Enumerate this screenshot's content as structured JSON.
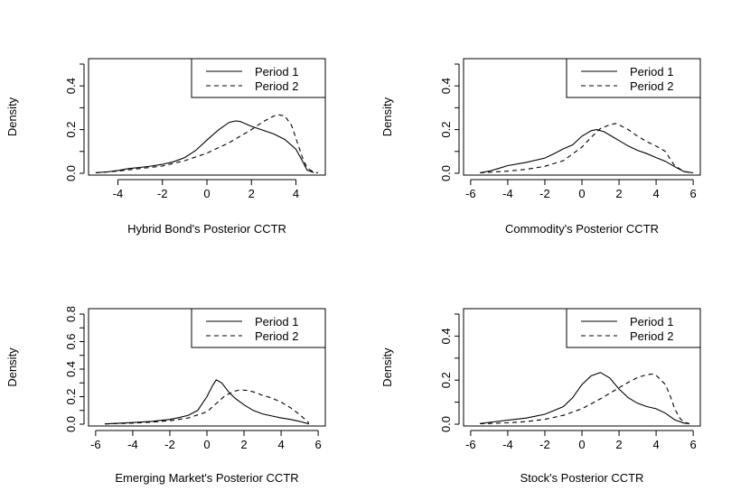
{
  "chart_data": [
    {
      "type": "line",
      "title": "",
      "xlabel": "Hybrid Bond's Posterior CCTR",
      "ylabel": "Density",
      "xlim": [
        -5,
        5
      ],
      "ylim": [
        0,
        0.5
      ],
      "xticks": [
        -4,
        -2,
        0,
        2,
        4
      ],
      "yticks": [
        0.0,
        0.2,
        0.4
      ],
      "ytick_labels": [
        "0.0",
        "0.2",
        "0.4"
      ],
      "legend": "top-right",
      "series": [
        {
          "name": "Period 1",
          "style": "solid",
          "x": [
            -5.0,
            -4.5,
            -4.0,
            -3.5,
            -3.0,
            -2.5,
            -2.0,
            -1.5,
            -1.0,
            -0.5,
            0.0,
            0.5,
            1.0,
            1.3,
            1.5,
            2.0,
            2.5,
            3.0,
            3.5,
            4.0,
            4.3,
            4.5,
            4.8
          ],
          "y": [
            0.003,
            0.006,
            0.013,
            0.022,
            0.027,
            0.033,
            0.041,
            0.053,
            0.072,
            0.105,
            0.152,
            0.197,
            0.233,
            0.24,
            0.237,
            0.215,
            0.198,
            0.18,
            0.155,
            0.11,
            0.055,
            0.015,
            0.003
          ]
        },
        {
          "name": "Period 2",
          "style": "dashed",
          "x": [
            -5.0,
            -4.0,
            -3.0,
            -2.0,
            -1.0,
            0.0,
            1.0,
            2.0,
            2.5,
            3.0,
            3.2,
            3.5,
            3.8,
            4.0,
            4.3,
            4.5,
            4.8,
            5.0
          ],
          "y": [
            0.002,
            0.01,
            0.022,
            0.033,
            0.058,
            0.092,
            0.14,
            0.2,
            0.235,
            0.262,
            0.268,
            0.262,
            0.22,
            0.16,
            0.07,
            0.025,
            0.005,
            0.002
          ]
        }
      ]
    },
    {
      "type": "line",
      "title": "",
      "xlabel": "Commodity's Posterior CCTR",
      "ylabel": "Density",
      "xlim": [
        -6,
        6
      ],
      "ylim": [
        0,
        0.5
      ],
      "xticks": [
        -6,
        -4,
        -2,
        0,
        2,
        4,
        6
      ],
      "yticks": [
        0.0,
        0.2,
        0.4
      ],
      "ytick_labels": [
        "0.0",
        "0.2",
        "0.4"
      ],
      "legend": "top-right",
      "series": [
        {
          "name": "Period 1",
          "style": "solid",
          "x": [
            -5.5,
            -5.0,
            -4.5,
            -4.0,
            -3.0,
            -2.0,
            -1.5,
            -1.0,
            -0.5,
            0.0,
            0.5,
            0.8,
            1.2,
            1.6,
            2.0,
            2.5,
            3.0,
            3.5,
            4.0,
            4.5,
            5.0,
            5.5,
            6.0
          ],
          "y": [
            0.002,
            0.01,
            0.022,
            0.035,
            0.05,
            0.07,
            0.09,
            0.112,
            0.13,
            0.17,
            0.195,
            0.2,
            0.19,
            0.17,
            0.15,
            0.125,
            0.105,
            0.09,
            0.072,
            0.055,
            0.03,
            0.008,
            0.002
          ]
        },
        {
          "name": "Period 2",
          "style": "dashed",
          "x": [
            -5.5,
            -4.0,
            -3.0,
            -2.0,
            -1.0,
            0.0,
            0.5,
            1.0,
            1.5,
            1.8,
            2.0,
            2.5,
            3.0,
            3.5,
            4.0,
            4.5,
            4.8,
            5.0,
            5.5,
            6.0
          ],
          "y": [
            0.002,
            0.01,
            0.018,
            0.032,
            0.058,
            0.12,
            0.165,
            0.205,
            0.222,
            0.228,
            0.222,
            0.2,
            0.17,
            0.145,
            0.125,
            0.1,
            0.06,
            0.035,
            0.008,
            0.002
          ]
        }
      ]
    },
    {
      "type": "line",
      "title": "",
      "xlabel": "Emerging Market's Posterior CCTR",
      "ylabel": "Density",
      "xlim": [
        -6,
        6
      ],
      "ylim": [
        0,
        0.8
      ],
      "xticks": [
        -6,
        -4,
        -2,
        0,
        2,
        4,
        6
      ],
      "yticks": [
        0.0,
        0.2,
        0.4,
        0.6,
        0.8
      ],
      "ytick_labels": [
        "0.0",
        "0.2",
        "0.4",
        "0.6",
        "0.8"
      ],
      "legend": "top-right",
      "series": [
        {
          "name": "Period 1",
          "style": "solid",
          "x": [
            -5.5,
            -5.0,
            -4.0,
            -3.0,
            -2.0,
            -1.5,
            -1.0,
            -0.5,
            0.0,
            0.3,
            0.5,
            0.8,
            1.2,
            1.5,
            2.0,
            2.5,
            3.0,
            3.5,
            4.0,
            4.5,
            5.0,
            5.5
          ],
          "y": [
            0.002,
            0.005,
            0.012,
            0.02,
            0.035,
            0.048,
            0.065,
            0.1,
            0.2,
            0.28,
            0.322,
            0.3,
            0.23,
            0.19,
            0.14,
            0.1,
            0.075,
            0.06,
            0.045,
            0.035,
            0.02,
            0.002
          ]
        },
        {
          "name": "Period 2",
          "style": "dashed",
          "x": [
            -5.5,
            -4.0,
            -3.0,
            -2.0,
            -1.0,
            0.0,
            0.5,
            1.0,
            1.5,
            1.8,
            2.2,
            2.5,
            3.0,
            3.5,
            4.0,
            4.5,
            5.0,
            5.5
          ],
          "y": [
            0.002,
            0.008,
            0.015,
            0.025,
            0.045,
            0.09,
            0.15,
            0.21,
            0.24,
            0.25,
            0.245,
            0.235,
            0.21,
            0.19,
            0.16,
            0.12,
            0.07,
            0.01
          ]
        }
      ]
    },
    {
      "type": "line",
      "title": "",
      "xlabel": "Stock's Posterior CCTR",
      "ylabel": "Density",
      "xlim": [
        -6,
        6
      ],
      "ylim": [
        0,
        0.5
      ],
      "xticks": [
        -6,
        -4,
        -2,
        0,
        2,
        4,
        6
      ],
      "yticks": [
        0.0,
        0.2,
        0.4
      ],
      "ytick_labels": [
        "0.0",
        "0.2",
        "0.4"
      ],
      "legend": "top-right",
      "series": [
        {
          "name": "Period 1",
          "style": "solid",
          "x": [
            -5.5,
            -5.0,
            -4.0,
            -3.0,
            -2.0,
            -1.0,
            -0.5,
            0.0,
            0.5,
            1.0,
            1.5,
            2.0,
            2.5,
            3.0,
            3.5,
            4.0,
            4.5,
            5.0,
            5.5,
            5.8
          ],
          "y": [
            0.003,
            0.008,
            0.018,
            0.028,
            0.045,
            0.08,
            0.12,
            0.18,
            0.22,
            0.235,
            0.21,
            0.16,
            0.12,
            0.095,
            0.08,
            0.07,
            0.05,
            0.02,
            0.005,
            0.002
          ]
        },
        {
          "name": "Period 2",
          "style": "dashed",
          "x": [
            -5.5,
            -4.0,
            -3.0,
            -2.0,
            -1.0,
            0.0,
            1.0,
            2.0,
            2.5,
            3.0,
            3.5,
            3.8,
            4.0,
            4.5,
            4.8,
            5.0,
            5.3,
            5.5,
            5.8
          ],
          "y": [
            0.002,
            0.006,
            0.012,
            0.022,
            0.04,
            0.07,
            0.115,
            0.165,
            0.19,
            0.212,
            0.225,
            0.228,
            0.222,
            0.18,
            0.12,
            0.07,
            0.025,
            0.01,
            0.002
          ]
        }
      ]
    }
  ]
}
